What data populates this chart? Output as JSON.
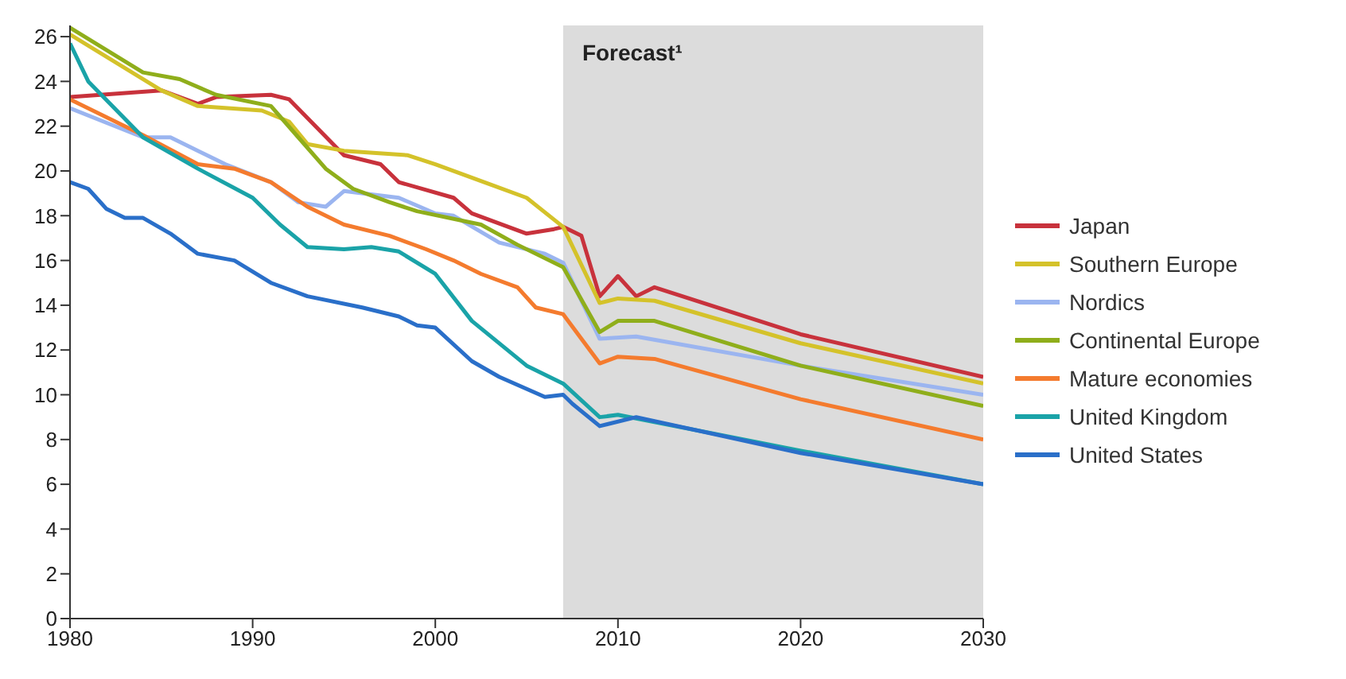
{
  "chart_data": {
    "type": "line",
    "xlim": [
      1980,
      2030
    ],
    "xticks": [
      1980,
      1990,
      2000,
      2010,
      2020,
      2030
    ],
    "ylim": [
      0,
      26.5
    ],
    "yticks": [
      0,
      2,
      4,
      6,
      8,
      10,
      12,
      14,
      16,
      18,
      20,
      22,
      24,
      26
    ],
    "legend": "right",
    "marker": "none",
    "line_style": "solid",
    "bands": [
      {
        "axis": "x",
        "from": 2007,
        "to": 2030,
        "label": "Forecast¹",
        "color": "#dcdcdc"
      }
    ],
    "series": [
      {
        "name": "Japan",
        "color": "#c8323c",
        "x": [
          1980,
          1985,
          1987,
          1988,
          1991,
          1992,
          1995,
          1997,
          1998,
          2001,
          2002,
          2005,
          2006.5,
          2007,
          2008,
          2009,
          2010,
          2011,
          2012,
          2020,
          2030
        ],
        "values": [
          23.3,
          23.6,
          23.0,
          23.3,
          23.4,
          23.2,
          20.7,
          20.3,
          19.5,
          18.8,
          18.1,
          17.2,
          17.4,
          17.5,
          17.1,
          14.4,
          15.3,
          14.4,
          14.8,
          12.7,
          10.8
        ]
      },
      {
        "name": "Southern Europe",
        "color": "#d4c22a",
        "x": [
          1980,
          1985,
          1987,
          1990.5,
          1992,
          1993,
          1995,
          1998.5,
          2000,
          2003,
          2005,
          2007,
          2009,
          2010,
          2012,
          2020,
          2030
        ],
        "values": [
          26.1,
          23.6,
          22.9,
          22.7,
          22.2,
          21.2,
          20.9,
          20.7,
          20.3,
          19.4,
          18.8,
          17.5,
          14.1,
          14.3,
          14.2,
          12.3,
          10.5
        ]
      },
      {
        "name": "Nordics",
        "color": "#9bb5f0",
        "x": [
          1980,
          1984,
          1985.5,
          1988.5,
          1991,
          1992.5,
          1994,
          1995,
          1998,
          2000,
          2001,
          2003.5,
          2006,
          2007,
          2009,
          2011,
          2020,
          2030
        ],
        "values": [
          22.8,
          21.5,
          21.5,
          20.3,
          19.5,
          18.6,
          18.4,
          19.1,
          18.8,
          18.1,
          18.0,
          16.8,
          16.3,
          15.9,
          12.5,
          12.6,
          11.3,
          10.0
        ]
      },
      {
        "name": "Continental Europe",
        "color": "#8fae1b",
        "x": [
          1980,
          1984,
          1986,
          1988,
          1991,
          1992.5,
          1994,
          1995.5,
          1997.5,
          1999,
          2002.5,
          2004.5,
          2007,
          2009,
          2010,
          2012,
          2020,
          2030
        ],
        "values": [
          26.4,
          24.4,
          24.1,
          23.4,
          22.9,
          21.5,
          20.1,
          19.2,
          18.6,
          18.2,
          17.6,
          16.7,
          15.7,
          12.8,
          13.3,
          13.3,
          11.3,
          9.5
        ]
      },
      {
        "name": "Mature economies",
        "color": "#f47b2e",
        "x": [
          1980,
          1984,
          1987,
          1989,
          1991,
          1993,
          1995,
          1997.5,
          1999.5,
          2001,
          2002.5,
          2004.5,
          2005.5,
          2007,
          2009,
          2010,
          2012,
          2020,
          2030
        ],
        "values": [
          23.2,
          21.6,
          20.3,
          20.1,
          19.5,
          18.4,
          17.6,
          17.1,
          16.5,
          16.0,
          15.4,
          14.8,
          13.9,
          13.6,
          11.4,
          11.7,
          11.6,
          9.8,
          8.0
        ]
      },
      {
        "name": "United Kingdom",
        "color": "#1aa3a8",
        "x": [
          1980,
          1981,
          1984,
          1987,
          1990,
          1991.5,
          1993,
          1995,
          1996.5,
          1998,
          2000,
          2002,
          2005,
          2007,
          2009,
          2010,
          2020,
          2030
        ],
        "values": [
          25.7,
          24.0,
          21.5,
          20.1,
          18.8,
          17.6,
          16.6,
          16.5,
          16.6,
          16.4,
          15.4,
          13.3,
          11.3,
          10.5,
          9.0,
          9.1,
          7.5,
          6.0
        ]
      },
      {
        "name": "United States",
        "color": "#2a6fc9",
        "x": [
          1980,
          1981,
          1982,
          1983,
          1984,
          1985.5,
          1987,
          1989,
          1991,
          1993,
          1996,
          1998,
          1999,
          2000,
          2002,
          2003.5,
          2006,
          2007,
          2007.5,
          2009,
          2011,
          2020,
          2030
        ],
        "values": [
          19.5,
          19.2,
          18.3,
          17.9,
          17.9,
          17.2,
          16.3,
          16.0,
          15.0,
          14.4,
          13.9,
          13.5,
          13.1,
          13.0,
          11.5,
          10.8,
          9.9,
          10.0,
          9.6,
          8.6,
          9.0,
          7.4,
          6.0
        ]
      }
    ]
  }
}
